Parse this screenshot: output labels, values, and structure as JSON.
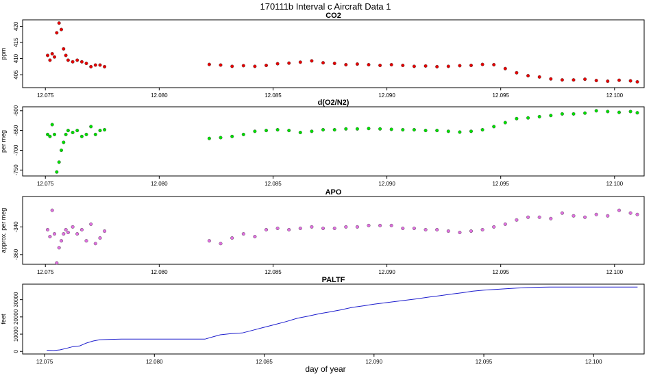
{
  "figure": {
    "title": "170111b   Interval c Aircraft Data 1",
    "xlabel": "day of year",
    "xticks": [
      "12.075",
      "12.080",
      "12.085",
      "12.090",
      "12.095",
      "12.100"
    ]
  },
  "chart_data": [
    {
      "type": "scatter",
      "title": "CO2",
      "xlabel": "",
      "ylabel": "ppm",
      "xlim": [
        12.074,
        12.1013
      ],
      "ylim": [
        401,
        422
      ],
      "yticks": [
        405,
        410,
        415,
        420
      ],
      "color": "#e60000",
      "grid": false,
      "x": [
        12.0751,
        12.0752,
        12.0753,
        12.0754,
        12.0755,
        12.0756,
        12.0757,
        12.0758,
        12.0759,
        12.076,
        12.0762,
        12.0764,
        12.0766,
        12.0768,
        12.077,
        12.0772,
        12.0774,
        12.0776,
        12.0822,
        12.0827,
        12.0832,
        12.0837,
        12.0842,
        12.0847,
        12.0852,
        12.0857,
        12.0862,
        12.0867,
        12.0872,
        12.0877,
        12.0882,
        12.0887,
        12.0892,
        12.0897,
        12.0902,
        12.0907,
        12.0912,
        12.0917,
        12.0922,
        12.0927,
        12.0932,
        12.0937,
        12.0942,
        12.0947,
        12.0952,
        12.0957,
        12.0962,
        12.0967,
        12.0972,
        12.0977,
        12.0982,
        12.0987,
        12.0992,
        12.0997,
        12.1002,
        12.1007,
        12.101
      ],
      "values": [
        411,
        409.5,
        411.5,
        410.5,
        418,
        421,
        419,
        413,
        411,
        409.5,
        409,
        409.5,
        409,
        408.5,
        407.5,
        408,
        408,
        407.5,
        408.2,
        408,
        407.6,
        407.8,
        407.6,
        407.9,
        408.4,
        408.6,
        408.9,
        409.3,
        408.7,
        408.5,
        408.1,
        408.3,
        408.1,
        407.9,
        408.1,
        407.9,
        407.6,
        407.7,
        407.5,
        407.6,
        407.8,
        407.9,
        408.2,
        408.1,
        406.9,
        405.6,
        404.7,
        404.3,
        403.7,
        403.4,
        403.4,
        403.6,
        403.2,
        403.0,
        403.3,
        403.1,
        402.8
      ]
    },
    {
      "type": "scatter",
      "title": "d(O2/N2)",
      "xlabel": "",
      "ylabel": "per meg",
      "xlim": [
        12.074,
        12.1013
      ],
      "ylim": [
        -765,
        -590
      ],
      "yticks": [
        -750,
        -700,
        -650,
        -600
      ],
      "color": "#00e000",
      "grid": false,
      "x": [
        12.0751,
        12.0752,
        12.0753,
        12.0754,
        12.0755,
        12.0756,
        12.0757,
        12.0758,
        12.0759,
        12.076,
        12.0762,
        12.0764,
        12.0766,
        12.0768,
        12.077,
        12.0772,
        12.0774,
        12.0776,
        12.0822,
        12.0827,
        12.0832,
        12.0837,
        12.0842,
        12.0847,
        12.0852,
        12.0857,
        12.0862,
        12.0867,
        12.0872,
        12.0877,
        12.0882,
        12.0887,
        12.0892,
        12.0897,
        12.0902,
        12.0907,
        12.0912,
        12.0917,
        12.0922,
        12.0927,
        12.0932,
        12.0937,
        12.0942,
        12.0947,
        12.0952,
        12.0957,
        12.0962,
        12.0967,
        12.0972,
        12.0977,
        12.0982,
        12.0987,
        12.0992,
        12.0997,
        12.1002,
        12.1007,
        12.101
      ],
      "values": [
        -660,
        -665,
        -635,
        -660,
        -755,
        -730,
        -700,
        -680,
        -660,
        -650,
        -655,
        -650,
        -665,
        -660,
        -640,
        -660,
        -650,
        -648,
        -670,
        -668,
        -665,
        -660,
        -652,
        -650,
        -648,
        -650,
        -655,
        -652,
        -648,
        -648,
        -646,
        -646,
        -645,
        -646,
        -647,
        -648,
        -648,
        -650,
        -650,
        -652,
        -654,
        -652,
        -648,
        -640,
        -630,
        -620,
        -618,
        -615,
        -612,
        -608,
        -608,
        -606,
        -600,
        -602,
        -604,
        -602,
        -605
      ]
    },
    {
      "type": "scatter",
      "title": "APO",
      "xlabel": "",
      "ylabel": "approx. per meg",
      "xlim": [
        12.074,
        12.1013
      ],
      "ylim": [
        -367,
        -318
      ],
      "yticks": [
        -360,
        -340
      ],
      "color": "#e070e0",
      "grid": false,
      "x": [
        12.0751,
        12.0752,
        12.0753,
        12.0754,
        12.0755,
        12.0756,
        12.0757,
        12.0758,
        12.0759,
        12.076,
        12.0762,
        12.0764,
        12.0766,
        12.0768,
        12.077,
        12.0772,
        12.0774,
        12.0776,
        12.0822,
        12.0827,
        12.0832,
        12.0837,
        12.0842,
        12.0847,
        12.0852,
        12.0857,
        12.0862,
        12.0867,
        12.0872,
        12.0877,
        12.0882,
        12.0887,
        12.0892,
        12.0897,
        12.0902,
        12.0907,
        12.0912,
        12.0917,
        12.0922,
        12.0927,
        12.0932,
        12.0937,
        12.0942,
        12.0947,
        12.0952,
        12.0957,
        12.0962,
        12.0967,
        12.0972,
        12.0977,
        12.0982,
        12.0987,
        12.0992,
        12.0997,
        12.1002,
        12.1007,
        12.101
      ],
      "values": [
        -342,
        -347,
        -328,
        -345,
        -366,
        -355,
        -350,
        -345,
        -342,
        -344,
        -340,
        -345,
        -342,
        -350,
        -338,
        -352,
        -348,
        -343,
        -350,
        -352,
        -348,
        -345,
        -347,
        -342,
        -341,
        -342,
        -341,
        -340,
        -341,
        -341,
        -340,
        -340,
        -339,
        -339,
        -339,
        -341,
        -341,
        -342,
        -342,
        -343,
        -344,
        -343,
        -342,
        -340,
        -338,
        -335,
        -333,
        -333,
        -334,
        -330,
        -332,
        -333,
        -331,
        -332,
        -328,
        -330,
        -331
      ]
    },
    {
      "type": "line",
      "title": "PALTF",
      "xlabel": "day of year",
      "ylabel": "feet",
      "xlim": [
        12.074,
        12.1023
      ],
      "ylim": [
        -1500,
        39000
      ],
      "yticks": [
        0,
        10000,
        20000,
        30000
      ],
      "color": "#1a1acc",
      "grid": false,
      "x": [
        12.0751,
        12.0754,
        12.0757,
        12.076,
        12.0763,
        12.0766,
        12.0769,
        12.0772,
        12.0775,
        12.078,
        12.0785,
        12.079,
        12.08,
        12.081,
        12.082,
        12.0823,
        12.0827,
        12.083,
        12.0835,
        12.084,
        12.0845,
        12.085,
        12.0855,
        12.086,
        12.0865,
        12.087,
        12.0875,
        12.088,
        12.0885,
        12.089,
        12.0895,
        12.09,
        12.0905,
        12.091,
        12.0915,
        12.092,
        12.0925,
        12.093,
        12.0935,
        12.094,
        12.0945,
        12.095,
        12.0955,
        12.096,
        12.0965,
        12.097,
        12.0975,
        12.098,
        12.099,
        12.1,
        12.101,
        12.102
      ],
      "values": [
        700,
        500,
        900,
        1800,
        2800,
        3200,
        4800,
        6000,
        6700,
        7000,
        7100,
        7100,
        7100,
        7100,
        7100,
        7100,
        8600,
        9600,
        10300,
        10700,
        12300,
        14000,
        15600,
        17300,
        19200,
        20400,
        21800,
        22900,
        24100,
        25500,
        26400,
        27400,
        28200,
        29000,
        29800,
        30600,
        31500,
        32300,
        33200,
        34000,
        34900,
        35500,
        35900,
        36300,
        36700,
        37000,
        37200,
        37300,
        37300,
        37300,
        37300,
        37300
      ]
    }
  ]
}
